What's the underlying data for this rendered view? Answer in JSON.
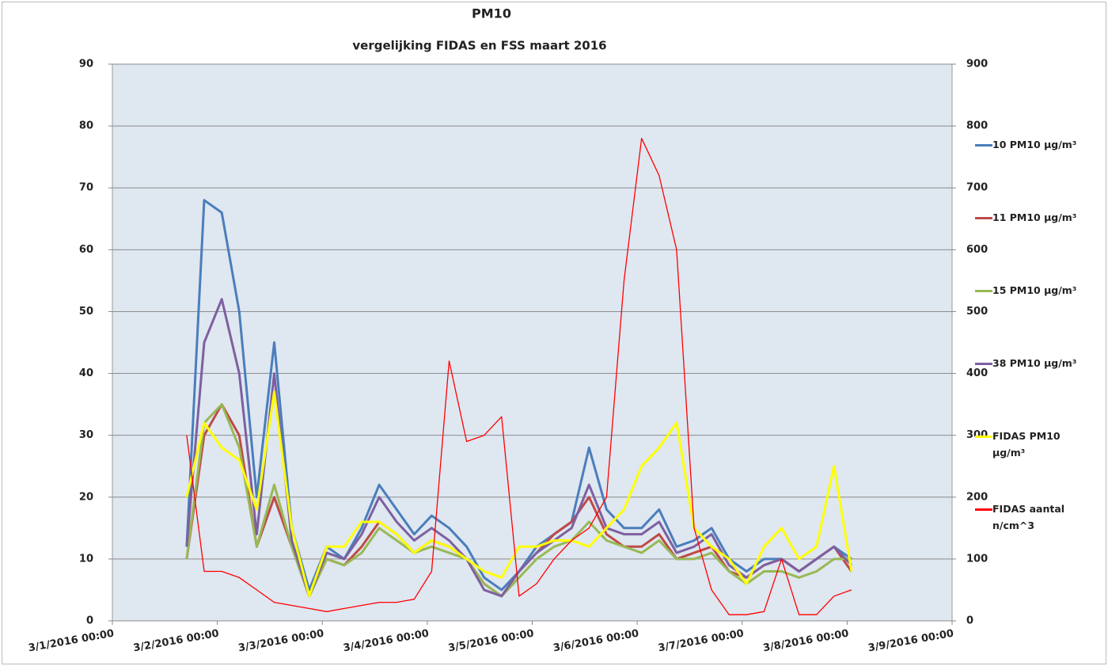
{
  "chart_data": {
    "type": "line",
    "title": "PM10",
    "subtitle": "vergelijking FIDAS en FSS maart 2016",
    "x": [
      "3/1/2016 17:00",
      "3/1/2016 21:00",
      "3/2/2016 01:00",
      "3/2/2016 05:00",
      "3/2/2016 09:00",
      "3/2/2016 13:00",
      "3/2/2016 17:00",
      "3/2/2016 21:00",
      "3/3/2016 01:00",
      "3/3/2016 05:00",
      "3/3/2016 09:00",
      "3/3/2016 13:00",
      "3/3/2016 17:00",
      "3/3/2016 21:00",
      "3/4/2016 01:00",
      "3/4/2016 05:00",
      "3/4/2016 09:00",
      "3/4/2016 13:00",
      "3/4/2016 17:00",
      "3/4/2016 21:00",
      "3/5/2016 01:00",
      "3/5/2016 05:00",
      "3/5/2016 09:00",
      "3/5/2016 13:00",
      "3/5/2016 17:00",
      "3/5/2016 21:00",
      "3/6/2016 01:00",
      "3/6/2016 05:00",
      "3/6/2016 09:00",
      "3/6/2016 13:00",
      "3/6/2016 17:00",
      "3/6/2016 21:00",
      "3/7/2016 01:00",
      "3/7/2016 05:00",
      "3/7/2016 09:00",
      "3/7/2016 13:00",
      "3/7/2016 17:00",
      "3/7/2016 21:00",
      "3/8/2016 01:00"
    ],
    "series": [
      {
        "name": "10 PM10 µg/m³",
        "color": "#4a7ebb",
        "width": 3,
        "values": [
          12,
          68,
          66,
          50,
          20,
          45,
          15,
          5,
          12,
          10,
          15,
          22,
          18,
          14,
          17,
          15,
          12,
          7,
          5,
          8,
          12,
          14,
          16,
          28,
          18,
          15,
          15,
          18,
          12,
          13,
          15,
          10,
          8,
          10,
          10,
          8,
          10,
          12,
          10
        ]
      },
      {
        "name": "11 PM10 µg/m³",
        "color": "#be4b48",
        "width": 3,
        "values": [
          10,
          30,
          35,
          30,
          12,
          20,
          12,
          4,
          10,
          9,
          12,
          16,
          14,
          11,
          13,
          12,
          10,
          6,
          4,
          8,
          11,
          14,
          16,
          20,
          14,
          12,
          12,
          14,
          10,
          11,
          12,
          8,
          7,
          9,
          10,
          8,
          10,
          12,
          8
        ]
      },
      {
        "name": "15 PM10 µg/m³",
        "color": "#98b954",
        "width": 3,
        "values": [
          10,
          32,
          35,
          28,
          12,
          22,
          12,
          4,
          10,
          9,
          11,
          15,
          13,
          11,
          12,
          11,
          10,
          6,
          4,
          7,
          10,
          12,
          13,
          16,
          13,
          12,
          11,
          13,
          10,
          10,
          11,
          8,
          6,
          8,
          8,
          7,
          8,
          10,
          10
        ]
      },
      {
        "name": "38 PM10 µg/m³",
        "color": "#7d60a0",
        "width": 3,
        "values": [
          12,
          45,
          52,
          40,
          14,
          40,
          13,
          4,
          11,
          10,
          14,
          20,
          16,
          13,
          15,
          13,
          10,
          5,
          4,
          8,
          11,
          13,
          15,
          22,
          15,
          14,
          14,
          16,
          11,
          12,
          14,
          9,
          7,
          9,
          10,
          8,
          10,
          12,
          9
        ]
      },
      {
        "name": "FIDAS PM10 µg/m³",
        "color": "#ffff00",
        "width": 3,
        "values": [
          20,
          32,
          28,
          26,
          18,
          37,
          15,
          4,
          12,
          12,
          16,
          16,
          14,
          11,
          13,
          12,
          10,
          8,
          7,
          12,
          12,
          13,
          13,
          12,
          15,
          18,
          25,
          28,
          32,
          15,
          12,
          10,
          6,
          12,
          15,
          10,
          12,
          25,
          8
        ]
      },
      {
        "name": "FIDAS aantal n/cm^3",
        "color": "#ff0000",
        "width": 1.3,
        "axis": "y2",
        "values": [
          300,
          80,
          80,
          70,
          50,
          30,
          25,
          20,
          15,
          20,
          25,
          30,
          30,
          35,
          80,
          420,
          290,
          300,
          330,
          40,
          60,
          100,
          130,
          150,
          200,
          550,
          780,
          720,
          600,
          150,
          50,
          10,
          10,
          15,
          100,
          10,
          10,
          40,
          50
        ]
      }
    ],
    "xlim": [
      "3/1/2016 00:00",
      "3/9/2016 00:00"
    ],
    "xticks": [
      "3/1/2016 00:00",
      "3/2/2016 00:00",
      "3/3/2016 00:00",
      "3/4/2016 00:00",
      "3/5/2016 00:00",
      "3/6/2016 00:00",
      "3/7/2016 00:00",
      "3/8/2016 00:00",
      "3/9/2016 00:00"
    ],
    "ylim": [
      0,
      90
    ],
    "yticks": [
      0,
      10,
      20,
      30,
      40,
      50,
      60,
      70,
      80,
      90
    ],
    "y2lim": [
      0,
      900
    ],
    "y2ticks": [
      0,
      100,
      200,
      300,
      400,
      500,
      600,
      700,
      800,
      900
    ],
    "grid": true,
    "legend": "right"
  }
}
